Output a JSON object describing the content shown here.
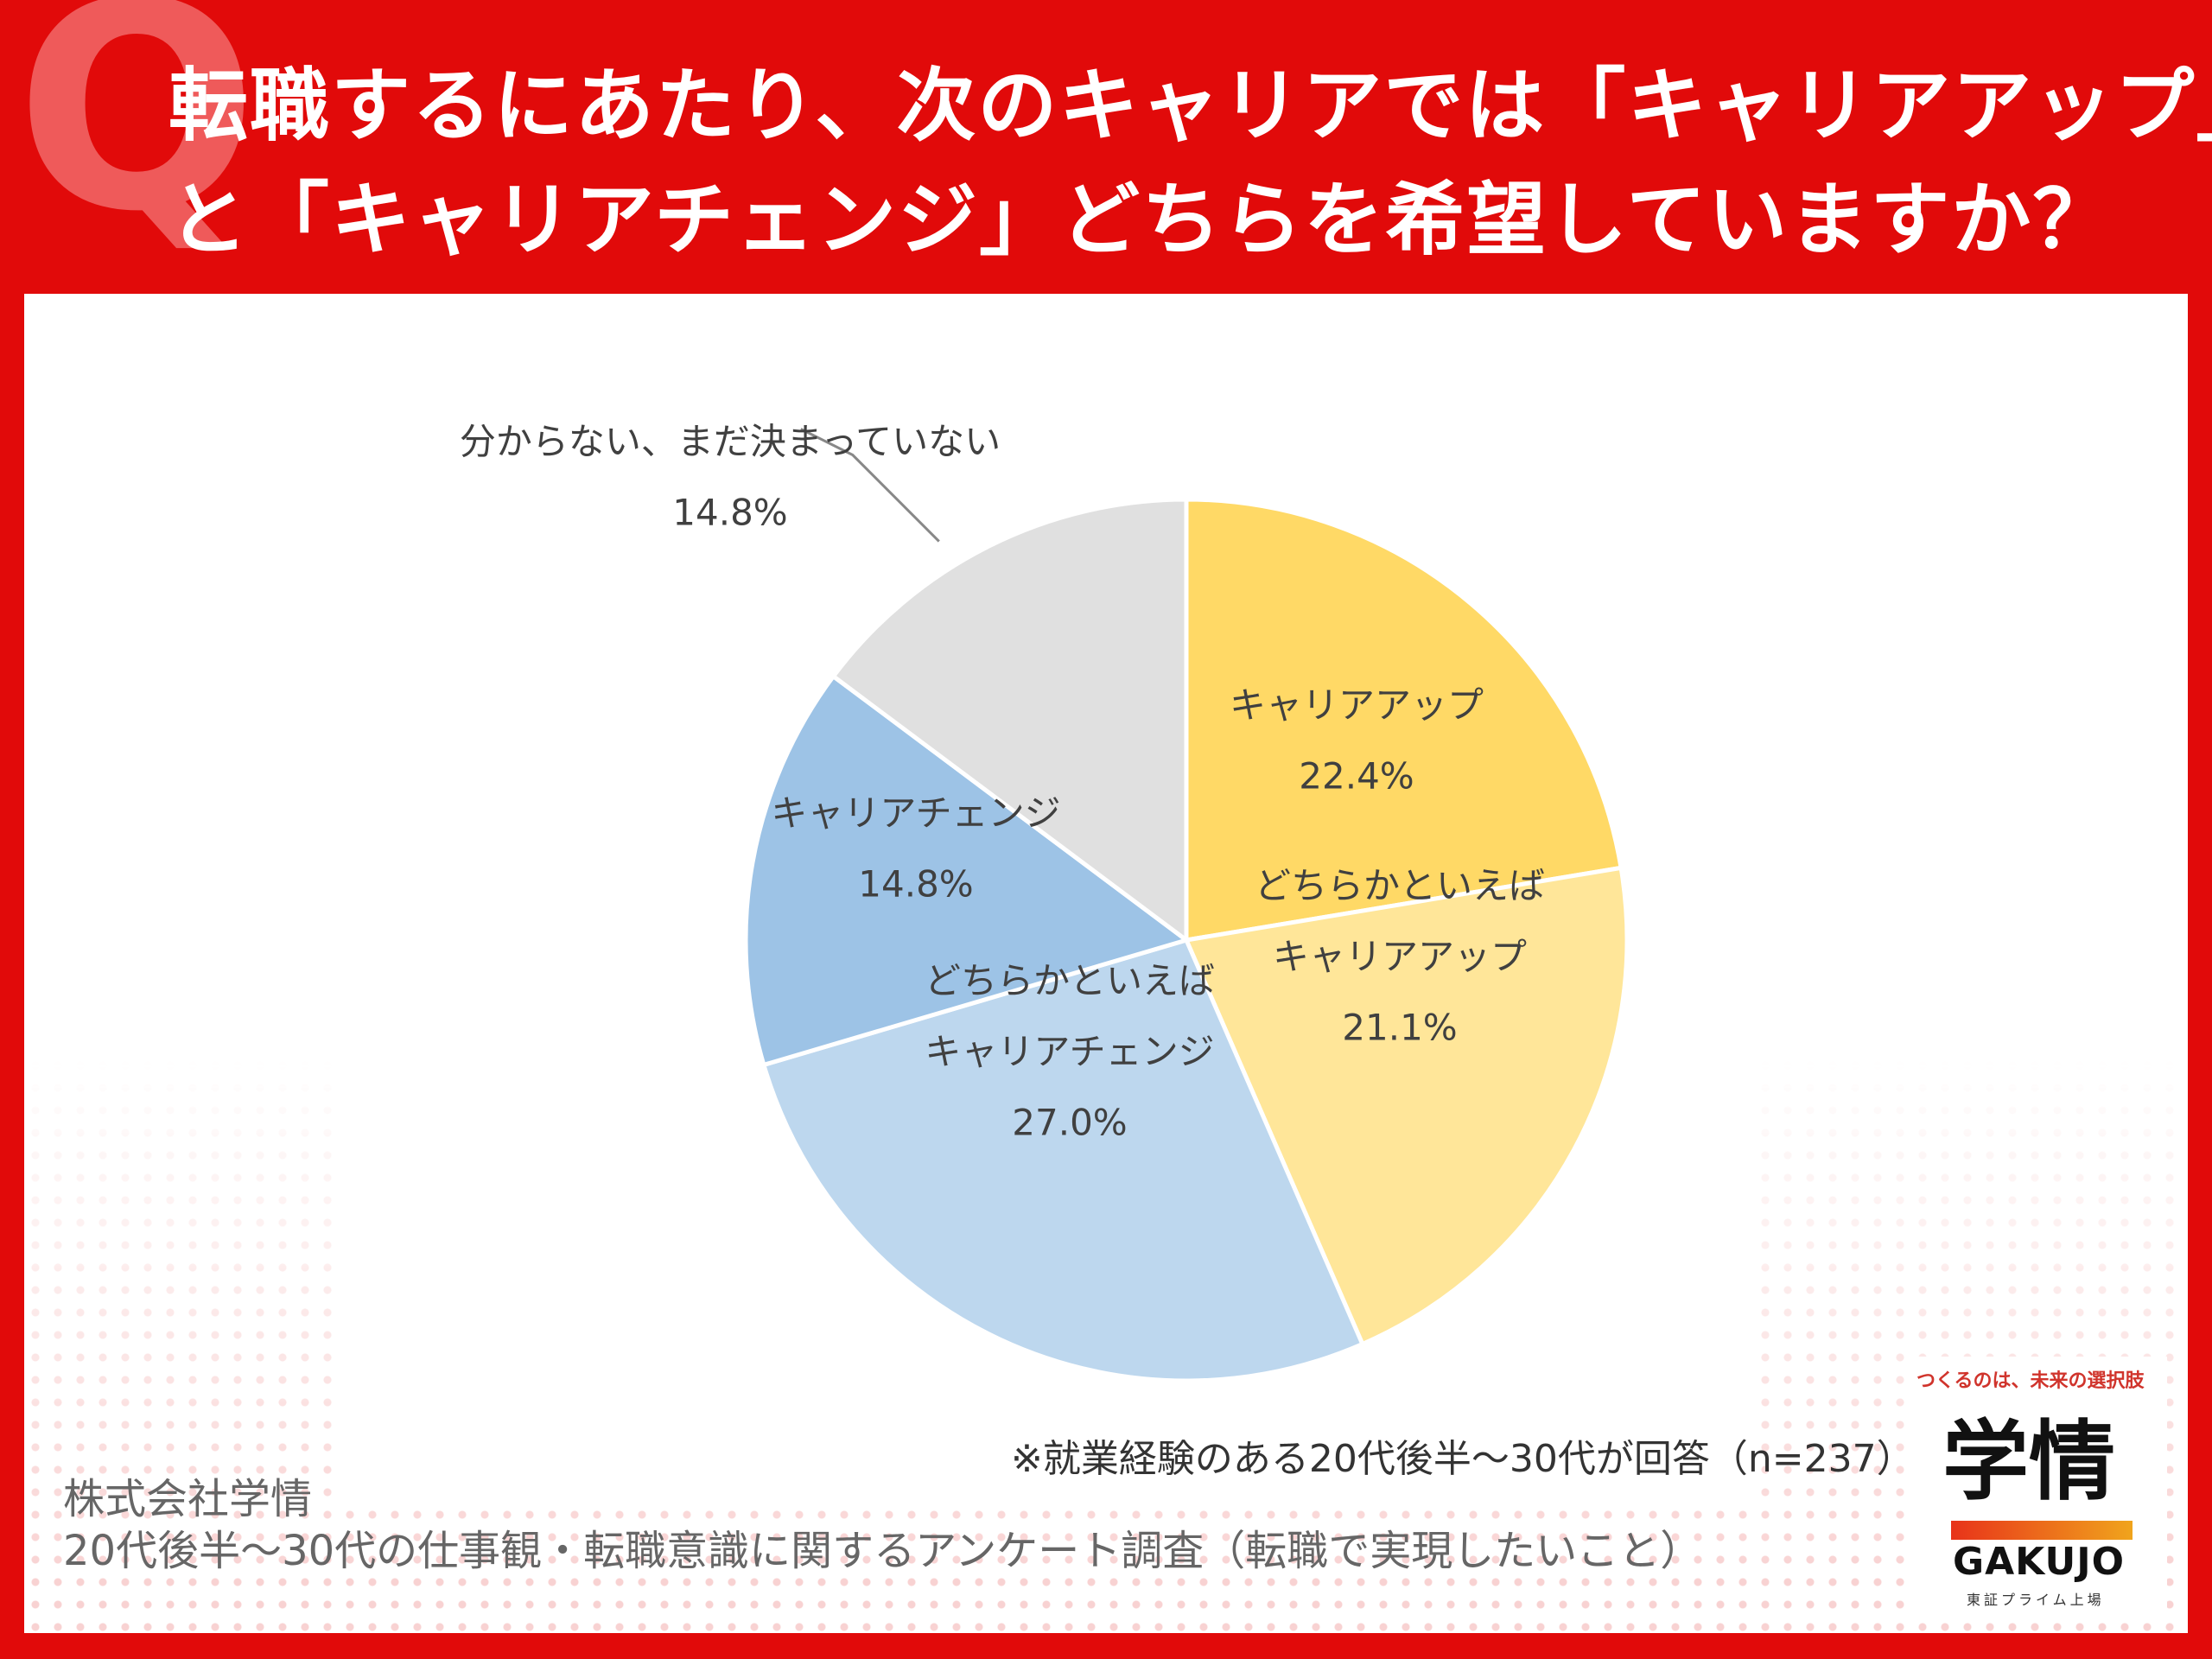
{
  "header": {
    "q_mark": "Q",
    "title_line1": "転職するにあたり、次のキャリアでは「キャリアアップ」",
    "title_line2": "と「キャリアチェンジ」どちらを希望していますか？"
  },
  "chart_data": {
    "type": "pie",
    "title": "",
    "slices": [
      {
        "label_lines": [
          "キャリアアップ"
        ],
        "value": 22.4,
        "value_text": "22.4%",
        "color": "#ffd966"
      },
      {
        "label_lines": [
          "どちらかといえば",
          "キャリアアップ"
        ],
        "value": 21.1,
        "value_text": "21.1%",
        "color": "#ffe699"
      },
      {
        "label_lines": [
          "どちらかといえば",
          "キャリアチェンジ"
        ],
        "value": 27.0,
        "value_text": "27.0%",
        "color": "#bdd7ee"
      },
      {
        "label_lines": [
          "キャリアチェンジ"
        ],
        "value": 14.8,
        "value_text": "14.8%",
        "color": "#9dc3e6"
      },
      {
        "label_lines": [
          "分からない、まだ決まっていない"
        ],
        "value": 14.8,
        "value_text": "14.8%",
        "color": "#e0e0e0"
      }
    ],
    "start_angle": "12 o'clock",
    "direction": "clockwise",
    "legend": "none"
  },
  "note": "※就業経験のある20代後半～30代が回答（n=237）",
  "source": {
    "company": "株式会社学情",
    "survey": "20代後半～30代の仕事観・転職意識に関するアンケート調査（転職で実現したいこと）"
  },
  "logo": {
    "tagline": "つくるのは、未来の選択肢",
    "name_jp": "学情",
    "name_en": "GAKUJO",
    "sub": "東証プライム上場",
    "colors": {
      "bar_start": "#e8331a",
      "bar_end": "#f0a41c"
    }
  },
  "theme": {
    "frame_red": "#e10a0a",
    "q_color": "#ef5a5a"
  }
}
